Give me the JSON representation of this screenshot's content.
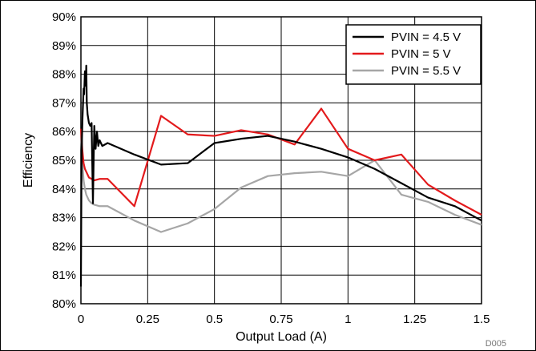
{
  "chart_data": {
    "type": "line",
    "xlabel": "Output Load (A)",
    "ylabel": "Efficiency",
    "xlim": [
      0,
      1.5
    ],
    "ylim": [
      80,
      90
    ],
    "x_ticks": [
      "0",
      "0.25",
      "0.5",
      "0.75",
      "1",
      "1.25",
      "1.5"
    ],
    "y_ticks": [
      "80%",
      "81%",
      "82%",
      "83%",
      "84%",
      "85%",
      "86%",
      "87%",
      "88%",
      "89%",
      "90%"
    ],
    "grid": true,
    "legend_position": "top-right",
    "figure_code": "D005",
    "series": [
      {
        "name": "PVIN = 4.5 V",
        "color": "#000000",
        "x": [
          0.0,
          0.002,
          0.004,
          0.006,
          0.008,
          0.01,
          0.012,
          0.015,
          0.018,
          0.02,
          0.022,
          0.025,
          0.03,
          0.035,
          0.04,
          0.045,
          0.048,
          0.05,
          0.055,
          0.06,
          0.065,
          0.07,
          0.08,
          0.1,
          0.2,
          0.3,
          0.4,
          0.5,
          0.6,
          0.7,
          0.8,
          0.9,
          1.0,
          1.1,
          1.2,
          1.3,
          1.4,
          1.5
        ],
        "y": [
          80.6,
          84.5,
          85.8,
          86.5,
          87.0,
          87.5,
          87.3,
          88.1,
          87.6,
          88.3,
          87.0,
          86.6,
          86.3,
          86.2,
          86.3,
          83.5,
          85.2,
          86.2,
          85.4,
          86.0,
          85.5,
          85.7,
          85.5,
          85.6,
          85.2,
          84.85,
          84.9,
          85.6,
          85.75,
          85.85,
          85.65,
          85.4,
          85.1,
          84.7,
          84.2,
          83.7,
          83.4,
          82.9
        ]
      },
      {
        "name": "PVIN = 5 V",
        "color": "#e31a1c",
        "x": [
          0.0,
          0.005,
          0.01,
          0.015,
          0.02,
          0.03,
          0.04,
          0.05,
          0.07,
          0.1,
          0.2,
          0.3,
          0.4,
          0.5,
          0.6,
          0.7,
          0.8,
          0.9,
          1.0,
          1.1,
          1.2,
          1.3,
          1.4,
          1.5
        ],
        "y": [
          86.1,
          85.4,
          84.9,
          84.7,
          84.6,
          84.4,
          84.35,
          84.3,
          84.35,
          84.35,
          83.4,
          86.55,
          85.9,
          85.85,
          86.05,
          85.9,
          85.55,
          86.8,
          85.4,
          85.0,
          85.2,
          84.15,
          83.6,
          83.1
        ]
      },
      {
        "name": "PVIN = 5.5 V",
        "color": "#a6a6a6",
        "x": [
          0.0,
          0.005,
          0.01,
          0.015,
          0.02,
          0.03,
          0.04,
          0.05,
          0.07,
          0.1,
          0.2,
          0.3,
          0.4,
          0.5,
          0.6,
          0.7,
          0.8,
          0.9,
          1.0,
          1.1,
          1.2,
          1.3,
          1.4,
          1.5
        ],
        "y": [
          86.0,
          85.0,
          84.3,
          84.0,
          83.8,
          83.6,
          83.5,
          83.45,
          83.4,
          83.4,
          82.9,
          82.5,
          82.8,
          83.3,
          84.05,
          84.45,
          84.55,
          84.6,
          84.45,
          85.0,
          83.8,
          83.55,
          83.1,
          82.75
        ]
      }
    ]
  }
}
